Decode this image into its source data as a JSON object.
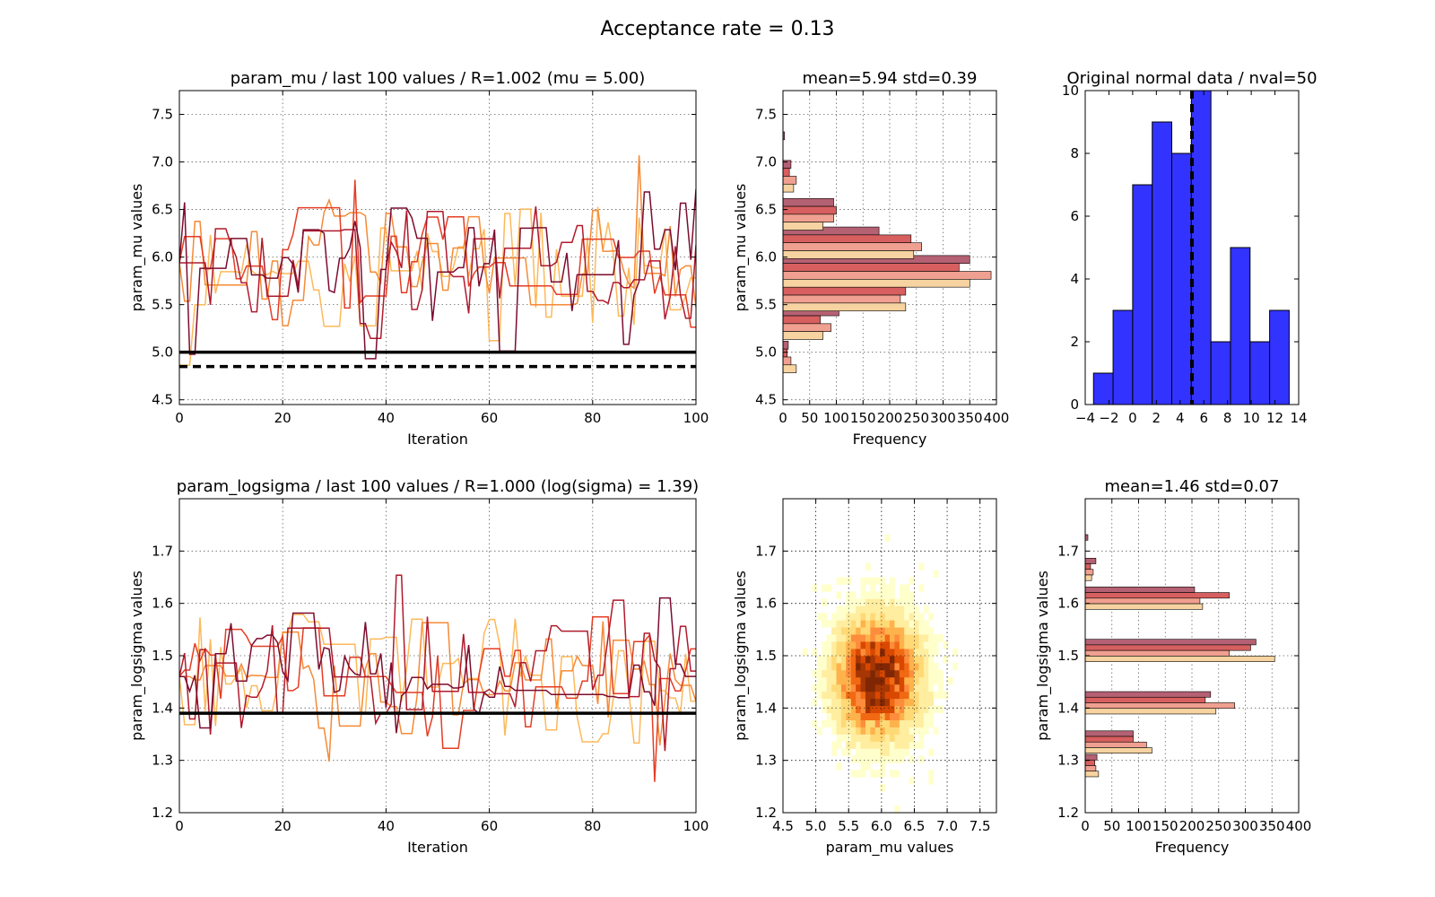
{
  "figure": {
    "suptitle": "Acceptance rate = 0.13"
  },
  "colors": {
    "chains": [
      "#fdb95a",
      "#f58a36",
      "#e43d24",
      "#b11a2c",
      "#7c0c2e"
    ],
    "hist_chains": [
      "#b46173",
      "#d75f5f",
      "#f0a090",
      "#f6d3a0"
    ],
    "blue": "#3333ff",
    "heat": [
      "#ffffcc",
      "#ffeda0",
      "#fed976",
      "#feb24c",
      "#fd8d3c",
      "#f16913",
      "#d94801",
      "#a63603",
      "#7f2704"
    ]
  },
  "chart_data": [
    {
      "id": "trace_mu",
      "type": "line",
      "title": "param_mu / last 100 values / R=1.002 (mu = 5.00)",
      "xlabel": "Iteration",
      "ylabel": "param_mu values",
      "xlim": [
        0,
        100
      ],
      "ylim": [
        4.45,
        7.75
      ],
      "xticks": [
        0,
        20,
        40,
        60,
        80,
        100
      ],
      "yticks": [
        4.5,
        5.0,
        5.5,
        6.0,
        6.5,
        7.0,
        7.5
      ],
      "ytick_labels": [
        "4.5",
        "5.0",
        "5.5",
        "6.0",
        "6.5",
        "7.0",
        "7.5"
      ],
      "grid": true,
      "n_chains": 5,
      "chain_center": 5.94,
      "chain_spread": 0.39,
      "hlines": [
        {
          "y": 5.0,
          "style": "solid"
        },
        {
          "y": 4.85,
          "style": "dashed"
        }
      ]
    },
    {
      "id": "hist_mu",
      "type": "bar",
      "orientation": "horizontal",
      "title": "mean=5.94 std=0.39",
      "xlabel": "Frequency",
      "ylabel": "param_mu values",
      "xlim": [
        0,
        400
      ],
      "ylim": [
        4.45,
        7.75
      ],
      "xticks": [
        0,
        50,
        100,
        150,
        200,
        250,
        300,
        350,
        400
      ],
      "yticks": [
        4.5,
        5.0,
        5.5,
        6.0,
        6.5,
        7.0,
        7.5
      ],
      "ytick_labels": [
        "4.5",
        "5.0",
        "5.5",
        "6.0",
        "6.5",
        "7.0",
        "7.5"
      ],
      "grid": true,
      "bins": [
        4.95,
        5.3,
        5.6,
        5.85,
        6.15,
        6.45,
        6.85,
        7.15
      ],
      "series": [
        {
          "values": [
            10,
            105,
            250,
            350,
            180,
            95,
            15,
            3
          ]
        },
        {
          "values": [
            8,
            70,
            230,
            330,
            240,
            100,
            12,
            0
          ]
        },
        {
          "values": [
            15,
            90,
            220,
            390,
            260,
            95,
            25,
            0
          ]
        },
        {
          "values": [
            25,
            75,
            230,
            350,
            245,
            75,
            20,
            0
          ]
        }
      ]
    },
    {
      "id": "hist_data",
      "type": "bar",
      "title": "Original normal data / nval=50",
      "xlim": [
        -4,
        14
      ],
      "ylim": [
        0,
        10
      ],
      "xticks": [
        -4,
        -2,
        0,
        2,
        4,
        6,
        8,
        10,
        12,
        14
      ],
      "xtick_labels": [
        "−4",
        "−2",
        "0",
        "2",
        "4",
        "6",
        "8",
        "10",
        "12",
        "14"
      ],
      "yticks": [
        0,
        2,
        4,
        6,
        8,
        10
      ],
      "grid": false,
      "bin_edges": [
        -3.3,
        -1.65,
        0,
        1.65,
        3.3,
        4.95,
        6.6,
        8.25,
        9.9,
        11.55,
        13.2
      ],
      "values": [
        1,
        3,
        7,
        9,
        8,
        10,
        2,
        5,
        2,
        3
      ],
      "vline": 5.0
    },
    {
      "id": "trace_logsigma",
      "type": "line",
      "title": "param_logsigma / last 100 values / R=1.000 (log(sigma) = 1.39)",
      "xlabel": "Iteration",
      "ylabel": "param_logsigma values",
      "xlim": [
        0,
        100
      ],
      "ylim": [
        1.2,
        1.8
      ],
      "xticks": [
        0,
        20,
        40,
        60,
        80,
        100
      ],
      "yticks": [
        1.2,
        1.3,
        1.4,
        1.5,
        1.6,
        1.7
      ],
      "ytick_labels": [
        "1.2",
        "1.3",
        "1.4",
        "1.5",
        "1.6",
        "1.7"
      ],
      "grid": true,
      "n_chains": 5,
      "chain_center": 1.46,
      "chain_spread": 0.07,
      "hlines": [
        {
          "y": 1.39,
          "style": "solid"
        }
      ]
    },
    {
      "id": "heat_joint",
      "type": "heatmap",
      "xlabel": "param_mu values",
      "ylabel": "param_logsigma values",
      "xlim": [
        4.5,
        7.75
      ],
      "ylim": [
        1.2,
        1.8
      ],
      "xticks": [
        4.5,
        5.0,
        5.5,
        6.0,
        6.5,
        7.0,
        7.5
      ],
      "xtick_labels": [
        "4.5",
        "5.0",
        "5.5",
        "6.0",
        "6.5",
        "7.0",
        "7.5"
      ],
      "yticks": [
        1.2,
        1.3,
        1.4,
        1.5,
        1.6,
        1.7
      ],
      "ytick_labels": [
        "1.2",
        "1.3",
        "1.4",
        "1.5",
        "1.6",
        "1.7"
      ],
      "grid": true,
      "center": [
        5.94,
        1.46
      ],
      "std": [
        0.39,
        0.07
      ]
    },
    {
      "id": "hist_logsigma",
      "type": "bar",
      "orientation": "horizontal",
      "title": "mean=1.46 std=0.07",
      "xlabel": "Frequency",
      "ylabel": "param_logsigma values",
      "xlim": [
        0,
        400
      ],
      "ylim": [
        1.2,
        1.8
      ],
      "xticks": [
        0,
        50,
        100,
        150,
        200,
        250,
        300,
        350,
        400
      ],
      "yticks": [
        1.2,
        1.3,
        1.4,
        1.5,
        1.6,
        1.7
      ],
      "ytick_labels": [
        "1.2",
        "1.3",
        "1.4",
        "1.5",
        "1.6",
        "1.7"
      ],
      "grid": true,
      "bins": [
        1.29,
        1.335,
        1.41,
        1.51,
        1.61,
        1.665,
        1.71
      ],
      "series": [
        {
          "values": [
            22,
            90,
            235,
            320,
            205,
            20,
            5
          ]
        },
        {
          "values": [
            18,
            90,
            225,
            310,
            270,
            10,
            0
          ]
        },
        {
          "values": [
            20,
            115,
            280,
            270,
            215,
            15,
            0
          ]
        },
        {
          "values": [
            25,
            125,
            245,
            355,
            220,
            12,
            0
          ]
        }
      ]
    }
  ]
}
